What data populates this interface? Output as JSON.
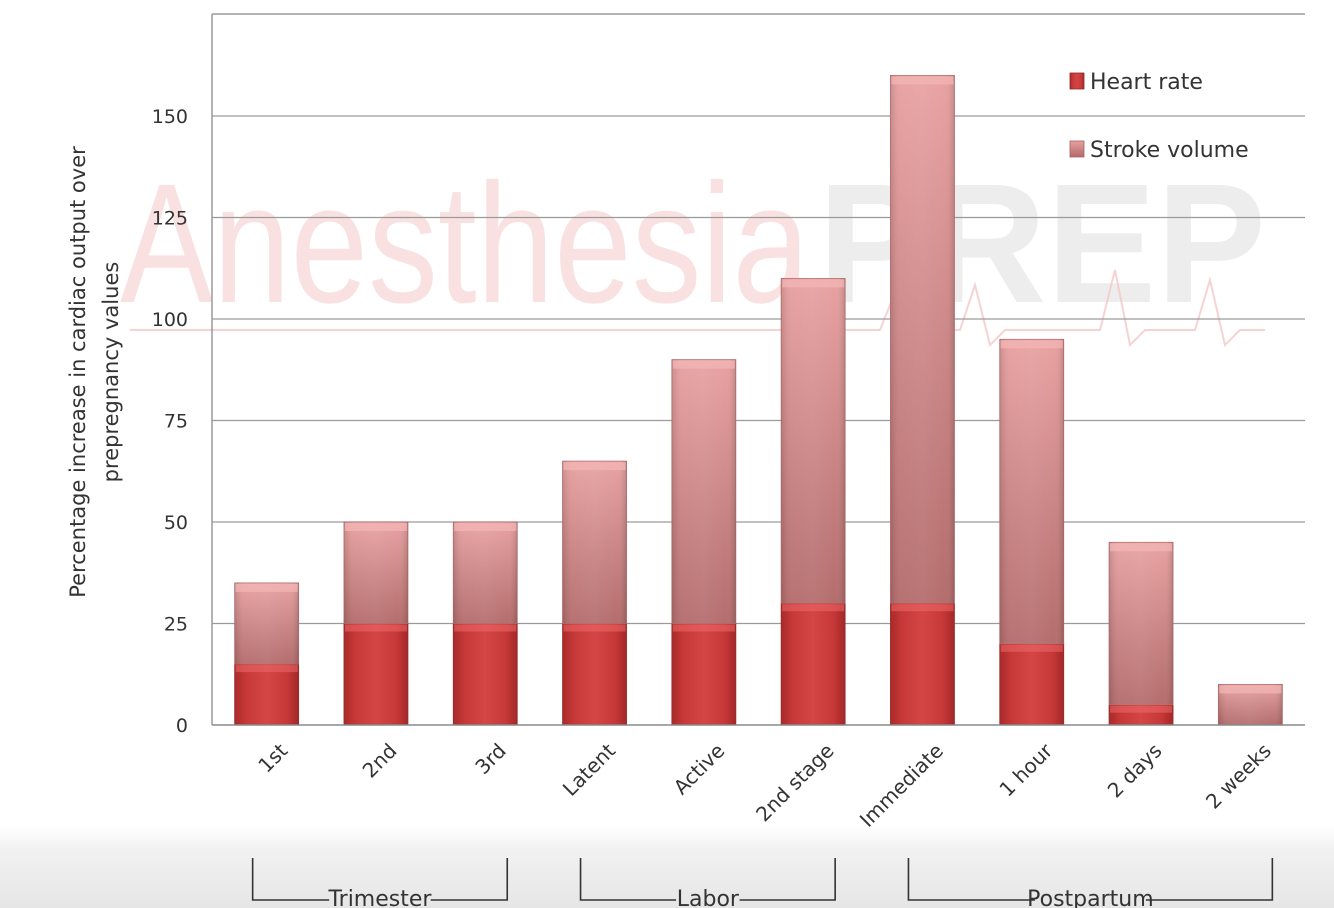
{
  "watermark": {
    "part1": "Anesthesia",
    "part2": "PREP"
  },
  "colors": {
    "heart_rate": "#c83a3a",
    "stroke_volume": "#dc8f8f",
    "grid": "#9a9a9a",
    "text": "#333333"
  },
  "chart_data": {
    "type": "bar",
    "stacked": true,
    "ylabel_lines": [
      "Percentage increase in cardiac output  over",
      "prepregnancy  values"
    ],
    "xlabel": "",
    "ylim": [
      0,
      175
    ],
    "yticks": [
      0,
      25,
      50,
      75,
      100,
      125,
      150
    ],
    "grid": true,
    "legend_position": "top-right",
    "categories": [
      "1st",
      "2nd",
      "3rd",
      "Latent",
      "Active",
      "2nd stage",
      "Immediate",
      "1 hour",
      "2 days",
      "2 weeks"
    ],
    "series": [
      {
        "name": "Heart rate",
        "values": [
          15,
          25,
          25,
          25,
          25,
          30,
          30,
          20,
          5,
          0
        ]
      },
      {
        "name": "Stroke volume",
        "values": [
          20,
          25,
          25,
          40,
          65,
          80,
          130,
          75,
          40,
          10
        ]
      }
    ],
    "groups": [
      {
        "label": "Trimester",
        "from": 0,
        "to": 2
      },
      {
        "label": "Labor",
        "from": 3,
        "to": 5
      },
      {
        "label": "Postpartum",
        "from": 6,
        "to": 9
      }
    ]
  }
}
